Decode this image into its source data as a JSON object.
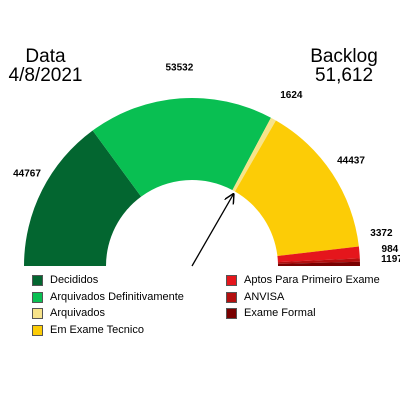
{
  "header": {
    "left_title": "Data",
    "left_value": "4/8/2021",
    "right_title": "Backlog",
    "right_value": "51,612"
  },
  "colors": {
    "decididos": "#036630",
    "arquivados_definitivamente": "#09bf52",
    "arquivados": "#f7e38a",
    "em_exame_tecnico": "#fccc06",
    "aptos_primeiro_exame": "#e5161c",
    "anvisa": "#b30f0f",
    "exame_formal": "#790000"
  },
  "chart_data": {
    "type": "gauge",
    "title": "",
    "segments": [
      {
        "name": "Decididos",
        "value": 44767,
        "label": "44767",
        "color": "#036630"
      },
      {
        "name": "Arquivados Definitivamente",
        "value": 53532,
        "label": "53532",
        "color": "#09bf52"
      },
      {
        "name": "Arquivados",
        "value": 1624,
        "label": "1624",
        "color": "#f7e38a"
      },
      {
        "name": "Em Exame Tecnico",
        "value": 44437,
        "label": "44437",
        "color": "#fccc06"
      },
      {
        "name": "Aptos Para Primeiro Exame",
        "value": 3372,
        "label": "3372",
        "color": "#e5161c"
      },
      {
        "name": "ANVISA",
        "value": 984,
        "label": "984",
        "color": "#b30f0f"
      },
      {
        "name": "Exame Formal",
        "value": 1197,
        "label": "1197",
        "color": "#790000"
      }
    ],
    "needle_value": 99923,
    "legend_placement": "bottom"
  },
  "legend": [
    {
      "label": "Decididos",
      "color": "#036630"
    },
    {
      "label": "Arquivados Definitivamente",
      "color": "#09bf52"
    },
    {
      "label": "Arquivados",
      "color": "#f7e38a"
    },
    {
      "label": "Em Exame Tecnico",
      "color": "#fccc06"
    },
    {
      "label": "Aptos Para Primeiro Exame",
      "color": "#e5161c"
    },
    {
      "label": "ANVISA",
      "color": "#b30f0f"
    },
    {
      "label": "Exame Formal",
      "color": "#790000"
    }
  ]
}
